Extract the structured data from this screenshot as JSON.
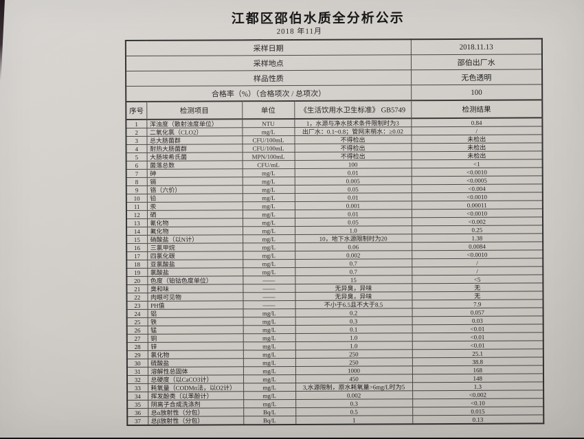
{
  "document": {
    "title": "江都区邵伯水质全分析公示",
    "subtitle": "2018 年11月"
  },
  "table": {
    "info_rows": [
      {
        "label": "采样日期",
        "value": "2018.11.13"
      },
      {
        "label": "采样地点",
        "value": "邵伯出厂水"
      },
      {
        "label": "样品性质",
        "value": "无色透明"
      },
      {
        "label": "合格率（%）（合格项次 / 总项次）",
        "value": "100"
      }
    ],
    "columns": [
      "序号",
      "检测项目",
      "单位",
      "《生活饮用水卫生标准》 GB5749",
      "检测结果"
    ],
    "rows": [
      [
        "1",
        "浑浊度（散射浊度单位）",
        "NTU",
        "1，水源与净水技术条件限制时为3",
        "0.84"
      ],
      [
        "2",
        "二氧化氯（CLO2）",
        "mg/L",
        "出厂水：0.1~0.8；管网末梢水：≥0.02",
        "/"
      ],
      [
        "3",
        "总大肠菌群",
        "CFU/100mL",
        "不得检出",
        "未检出"
      ],
      [
        "4",
        "耐热大肠菌群",
        "CFU/100mL",
        "不得检出",
        "未检出"
      ],
      [
        "5",
        "大肠埃希氏菌",
        "MPN/100mL",
        "不得检出",
        "未检出"
      ],
      [
        "6",
        "菌落总数",
        "CFU/mL",
        "100",
        "<1"
      ],
      [
        "7",
        "砷",
        "mg/L",
        "0.01",
        "<0.0010"
      ],
      [
        "8",
        "镉",
        "mg/L",
        "0.005",
        "<0.0005"
      ],
      [
        "9",
        "铬（六价）",
        "mg/L",
        "0.05",
        "<0.004"
      ],
      [
        "10",
        "铅",
        "mg/L",
        "0.01",
        "<0.0010"
      ],
      [
        "11",
        "汞",
        "mg/L",
        "0.001",
        "0.00011"
      ],
      [
        "12",
        "硒",
        "mg/L",
        "0.01",
        "<0.0010"
      ],
      [
        "13",
        "氰化物",
        "mg/L",
        "0.05",
        "<0.002"
      ],
      [
        "14",
        "氟化物",
        "mg/L",
        "1.0",
        "0.25"
      ],
      [
        "15",
        "硝酸盐（以N计）",
        "mg/L",
        "10，地下水源限制时为20",
        "1.38"
      ],
      [
        "16",
        "三氯甲烷",
        "mg/L",
        "0.06",
        "0.0084"
      ],
      [
        "17",
        "四氯化碳",
        "mg/L",
        "0.002",
        "<0.0010"
      ],
      [
        "18",
        "亚氯酸盐",
        "mg/L",
        "0.7",
        "/"
      ],
      [
        "19",
        "氯酸盐",
        "mg/L",
        "0.7",
        "/"
      ],
      [
        "20",
        "色度（铂钴色度单位）",
        "——",
        "15",
        "<5"
      ],
      [
        "21",
        "臭和味",
        "——",
        "无异臭，异味",
        "无"
      ],
      [
        "22",
        "肉眼可见物",
        "——",
        "无异臭，异味",
        "无"
      ],
      [
        "23",
        "PH值",
        "——",
        "不小于6.5且不大于8.5",
        "7.9"
      ],
      [
        "24",
        "铝",
        "mg/L",
        "0.2",
        "0.057"
      ],
      [
        "25",
        "铁",
        "mg/L",
        "0.3",
        "0.03"
      ],
      [
        "26",
        "锰",
        "mg/L",
        "0.1",
        "<0.01"
      ],
      [
        "27",
        "铜",
        "mg/L",
        "1.0",
        "<0.01"
      ],
      [
        "28",
        "锌",
        "mg/L",
        "1.0",
        "<0.01"
      ],
      [
        "29",
        "氯化物",
        "mg/L",
        "250",
        "25.1"
      ],
      [
        "30",
        "硫酸盐",
        "mg/L",
        "250",
        "38.8"
      ],
      [
        "31",
        "溶解性总固体",
        "mg/L",
        "1000",
        "168"
      ],
      [
        "32",
        "总硬度（以CaCO3计）",
        "mg/L",
        "450",
        "148"
      ],
      [
        "33",
        "耗氧量（CODMn法，以O2计）",
        "mg/L",
        "3,水源限制，原水耗氧量>6mg/L时为5",
        "1.3"
      ],
      [
        "34",
        "挥发酚类（以苯酚计）",
        "mg/L",
        "0.002",
        "<0.002"
      ],
      [
        "35",
        "阴离子合成洗涤剂",
        "mg/L",
        "0.3",
        "<0.10"
      ],
      [
        "36",
        "总α放射性（分包）",
        "Bq/L",
        "0.5",
        "0.015"
      ],
      [
        "37",
        "总β放射性（分包）",
        "Bq/L",
        "1",
        "0.13"
      ]
    ]
  },
  "colors": {
    "paper": "#d2cec9",
    "table_line": "#454441",
    "text": "#1d1d1d",
    "desk_edge": "#241b1f"
  }
}
